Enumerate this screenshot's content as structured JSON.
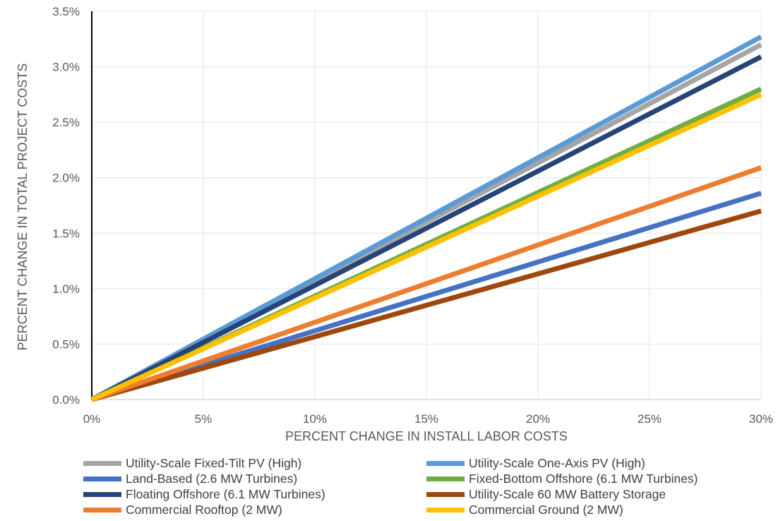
{
  "chart_data": {
    "type": "line",
    "xlabel": "PERCENT CHANGE IN INSTALL LABOR COSTS",
    "ylabel": "PERCENT CHANGE IN TOTAL PROJECT COSTS",
    "xlim": [
      0,
      30
    ],
    "ylim": [
      0,
      3.5
    ],
    "x_ticks": [
      "0%",
      "5%",
      "10%",
      "15%",
      "20%",
      "25%",
      "30%"
    ],
    "y_ticks": [
      "0.0%",
      "0.5%",
      "1.0%",
      "1.5%",
      "2.0%",
      "2.5%",
      "3.0%",
      "3.5%"
    ],
    "grid": true,
    "legend_position": "bottom",
    "x": [
      0,
      30
    ],
    "series": [
      {
        "name": "Utility-Scale Fixed-Tilt PV (High)",
        "color": "#a5a5a5",
        "values": [
          0,
          3.2
        ]
      },
      {
        "name": "Utility-Scale One-Axis PV (High)",
        "color": "#5b9bd5",
        "values": [
          0,
          3.27
        ]
      },
      {
        "name": "Land-Based (2.6 MW Turbines)",
        "color": "#4472c4",
        "values": [
          0,
          1.86
        ]
      },
      {
        "name": "Fixed-Bottom Offshore (6.1 MW Turbines)",
        "color": "#70ad47",
        "values": [
          0,
          2.8
        ]
      },
      {
        "name": "Floating Offshore (6.1 MW Turbines)",
        "color": "#264478",
        "values": [
          0,
          3.09
        ]
      },
      {
        "name": "Utility-Scale 60 MW Battery Storage",
        "color": "#9e480e",
        "values": [
          0,
          1.7
        ]
      },
      {
        "name": "Commercial Rooftop (2 MW)",
        "color": "#ed7d31",
        "values": [
          0,
          2.09
        ]
      },
      {
        "name": "Commercial Ground (2 MW)",
        "color": "#ffc000",
        "values": [
          0,
          2.75
        ]
      }
    ]
  }
}
